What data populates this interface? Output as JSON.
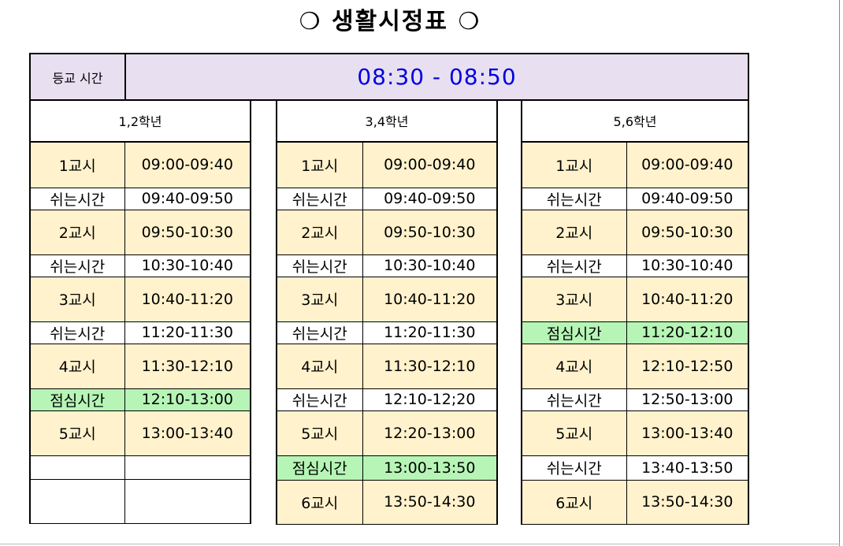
{
  "title": "❍  생활시정표  ❍",
  "arrival": {
    "label": "등교 시간",
    "value": "08:30 - 08:50"
  },
  "colors": {
    "period": "#fff2cc",
    "lunch": "#b6f5b6",
    "arrival_bg": "#e8e0f0",
    "arrival_text": "#0000e0"
  },
  "grades": [
    {
      "name": "1,2학년",
      "rows": [
        {
          "label": "1교시",
          "time": "09:00-09:40",
          "type": "period"
        },
        {
          "label": "쉬는시간",
          "time": "09:40-09:50",
          "type": "break"
        },
        {
          "label": "2교시",
          "time": "09:50-10:30",
          "type": "period"
        },
        {
          "label": "쉬는시간",
          "time": "10:30-10:40",
          "type": "break"
        },
        {
          "label": "3교시",
          "time": "10:40-11:20",
          "type": "period"
        },
        {
          "label": "쉬는시간",
          "time": "11:20-11:30",
          "type": "break"
        },
        {
          "label": "4교시",
          "time": "11:30-12:10",
          "type": "period"
        },
        {
          "label": "점심시간",
          "time": "12:10-13:00",
          "type": "lunch"
        },
        {
          "label": "5교시",
          "time": "13:00-13:40",
          "type": "period"
        },
        {
          "label": "",
          "time": "",
          "type": "empty"
        },
        {
          "label": "",
          "time": "",
          "type": "empty"
        }
      ]
    },
    {
      "name": "3,4학년",
      "rows": [
        {
          "label": "1교시",
          "time": "09:00-09:40",
          "type": "period"
        },
        {
          "label": "쉬는시간",
          "time": "09:40-09:50",
          "type": "break"
        },
        {
          "label": "2교시",
          "time": "09:50-10:30",
          "type": "period"
        },
        {
          "label": "쉬는시간",
          "time": "10:30-10:40",
          "type": "break"
        },
        {
          "label": "3교시",
          "time": "10:40-11:20",
          "type": "period"
        },
        {
          "label": "쉬는시간",
          "time": "11:20-11:30",
          "type": "break"
        },
        {
          "label": "4교시",
          "time": "11:30-12:10",
          "type": "period"
        },
        {
          "label": "쉬는시간",
          "time": "12:10-12;20",
          "type": "break"
        },
        {
          "label": "5교시",
          "time": "12:20-13:00",
          "type": "period"
        },
        {
          "label": "점심시간",
          "time": "13:00-13:50",
          "type": "lunch"
        },
        {
          "label": "6교시",
          "time": "13:50-14:30",
          "type": "period"
        }
      ]
    },
    {
      "name": "5,6학년",
      "rows": [
        {
          "label": "1교시",
          "time": "09:00-09:40",
          "type": "period"
        },
        {
          "label": "쉬는시간",
          "time": "09:40-09:50",
          "type": "break"
        },
        {
          "label": "2교시",
          "time": "09:50-10:30",
          "type": "period"
        },
        {
          "label": "쉬는시간",
          "time": "10:30-10:40",
          "type": "break"
        },
        {
          "label": "3교시",
          "time": "10:40-11:20",
          "type": "period"
        },
        {
          "label": "점심시간",
          "time": "11:20-12:10",
          "type": "lunch"
        },
        {
          "label": "4교시",
          "time": "12:10-12:50",
          "type": "period"
        },
        {
          "label": "쉬는시간",
          "time": "12:50-13:00",
          "type": "break"
        },
        {
          "label": "5교시",
          "time": "13:00-13:40",
          "type": "period"
        },
        {
          "label": "쉬는시간",
          "time": "13:40-13:50",
          "type": "break"
        },
        {
          "label": "6교시",
          "time": "13:50-14:30",
          "type": "period"
        }
      ]
    }
  ]
}
